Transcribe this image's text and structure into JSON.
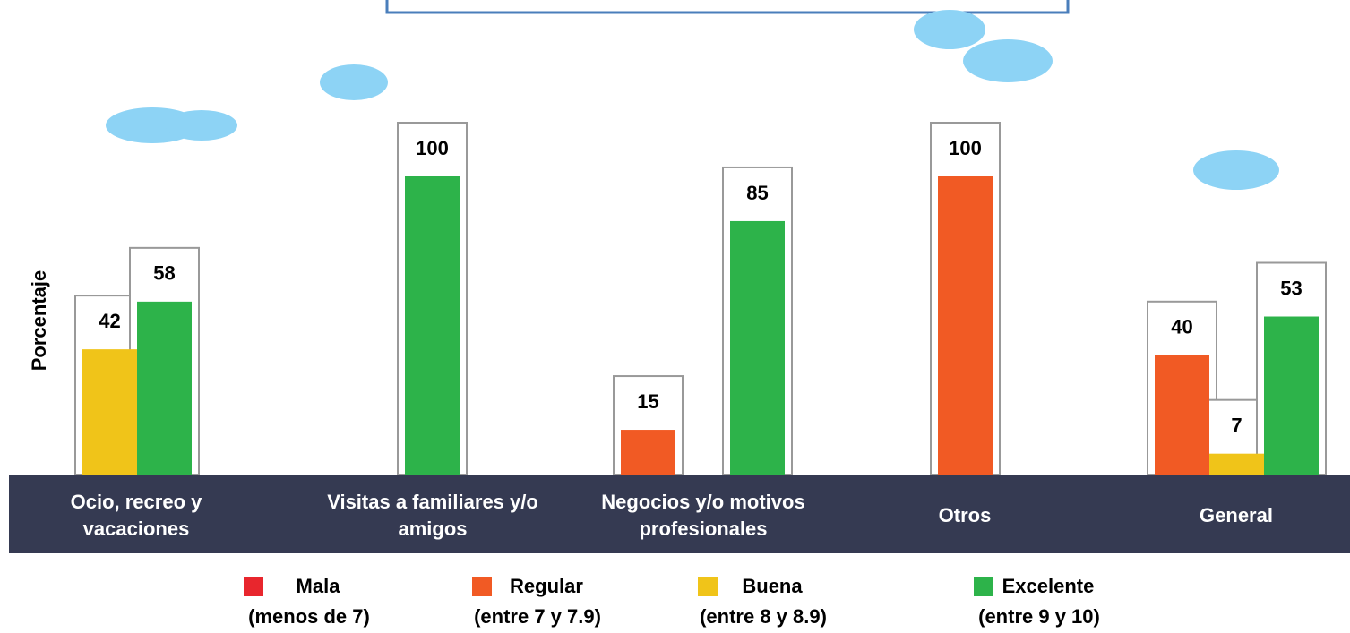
{
  "chart_data": {
    "type": "bar",
    "y_label": "Porcentaje",
    "categories": [
      "Ocio, recreo y vacaciones",
      "Visitas a familiares y/o amigos",
      "Negocios y/o motivos profesionales",
      "Otros",
      "General"
    ],
    "series": [
      {
        "name": "Mala",
        "range": "(menos de 7)",
        "color": "#e8262d",
        "values": [
          null,
          null,
          null,
          null,
          null
        ]
      },
      {
        "name": "Regular",
        "range": "(entre 7 y 7.9)",
        "color": "#f15a24",
        "values": [
          null,
          null,
          15,
          100,
          40
        ]
      },
      {
        "name": "Buena",
        "range": "(entre 8 y 8.9)",
        "color": "#f0c419",
        "values": [
          42,
          null,
          null,
          null,
          7
        ]
      },
      {
        "name": "Excelente",
        "range": "(entre 9 y 10)",
        "color": "#2db34a",
        "values": [
          58,
          100,
          85,
          null,
          53
        ]
      }
    ],
    "ylim": [
      0,
      100
    ]
  }
}
